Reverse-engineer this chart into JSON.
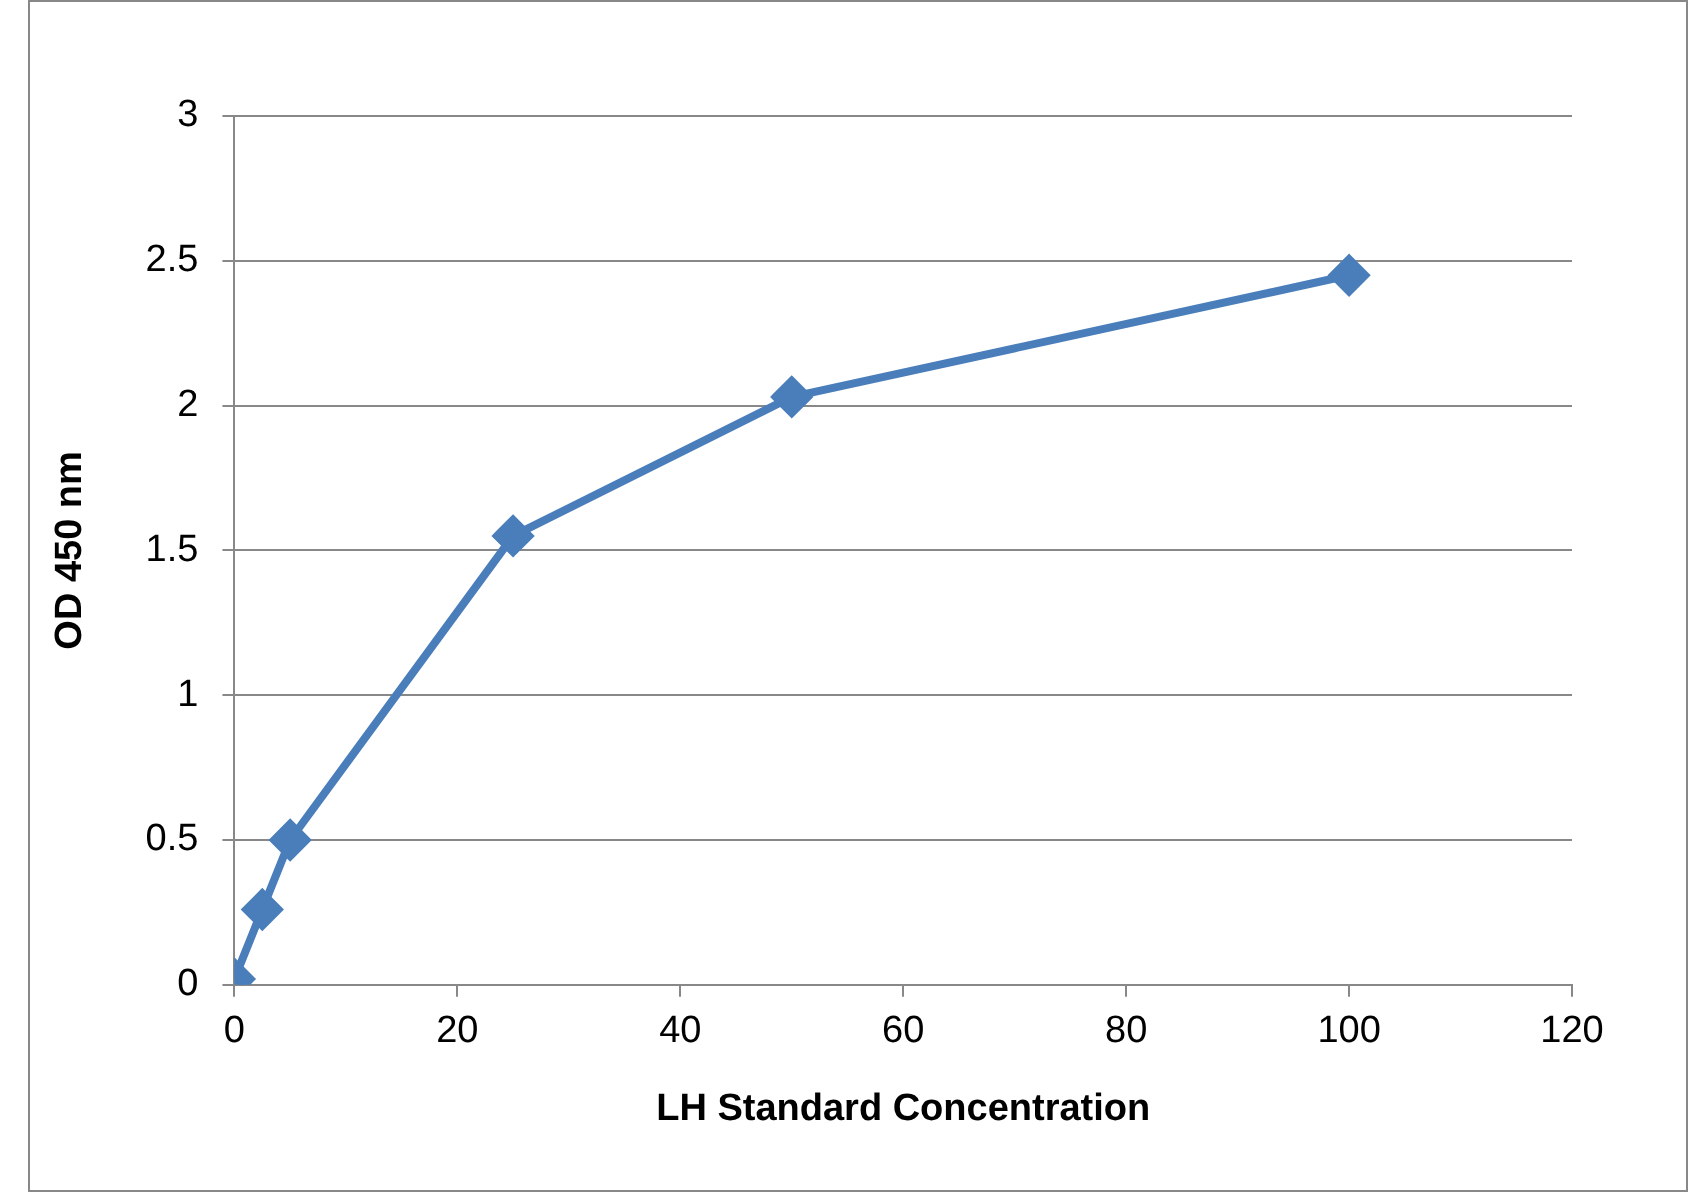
{
  "chart_data": {
    "type": "line",
    "xlabel": "LH Standard Concentration",
    "ylabel": "OD 450 nm",
    "x": [
      0,
      2.5,
      5,
      25,
      50,
      100
    ],
    "series": [
      {
        "color": "#4a7ebb",
        "values": [
          0.02,
          0.26,
          0.5,
          1.55,
          2.03,
          2.45
        ]
      }
    ],
    "xlim": [
      0,
      120
    ],
    "xticks": [
      0,
      20,
      40,
      60,
      80,
      100,
      120
    ],
    "ylim": [
      0,
      3
    ],
    "yticks": [
      0,
      0.5,
      1,
      1.5,
      2,
      2.5,
      3
    ],
    "grid": "y",
    "legend": false,
    "marker": "diamond",
    "line_style": "solid"
  }
}
